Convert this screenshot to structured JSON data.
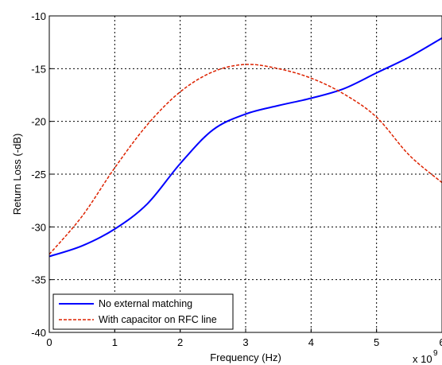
{
  "chart_data": {
    "type": "line",
    "title": "",
    "xlabel": "Frequency (Hz)",
    "ylabel": "Return Loss (-dB)",
    "x_exponent_label": "x 10",
    "x_exponent_power": "9",
    "xlim": [
      0,
      6
    ],
    "ylim": [
      -40,
      -10
    ],
    "xticks": [
      0,
      1,
      2,
      3,
      4,
      5,
      6
    ],
    "yticks": [
      -40,
      -35,
      -30,
      -25,
      -20,
      -15,
      -10
    ],
    "grid": true,
    "legend_position": "bottom-left",
    "series": [
      {
        "name": "No external matching",
        "color": "#0000ff",
        "linestyle": "solid",
        "x": [
          0,
          0.5,
          1.0,
          1.5,
          2.0,
          2.5,
          3.0,
          3.5,
          4.0,
          4.5,
          5.0,
          5.5,
          6.0
        ],
        "y": [
          -32.8,
          -31.8,
          -30.2,
          -27.8,
          -24.0,
          -20.8,
          -19.3,
          -18.5,
          -17.8,
          -16.9,
          -15.4,
          -13.9,
          -12.1
        ]
      },
      {
        "name": "With capacitor on RFC line",
        "color": "#dd2200",
        "linestyle": "dashed",
        "x": [
          0,
          0.5,
          1.0,
          1.5,
          2.0,
          2.5,
          3.0,
          3.5,
          4.0,
          4.5,
          5.0,
          5.5,
          6.0
        ],
        "y": [
          -32.6,
          -29.0,
          -24.4,
          -20.3,
          -17.2,
          -15.3,
          -14.6,
          -15.0,
          -15.9,
          -17.4,
          -19.6,
          -23.2,
          -25.8
        ]
      }
    ]
  }
}
